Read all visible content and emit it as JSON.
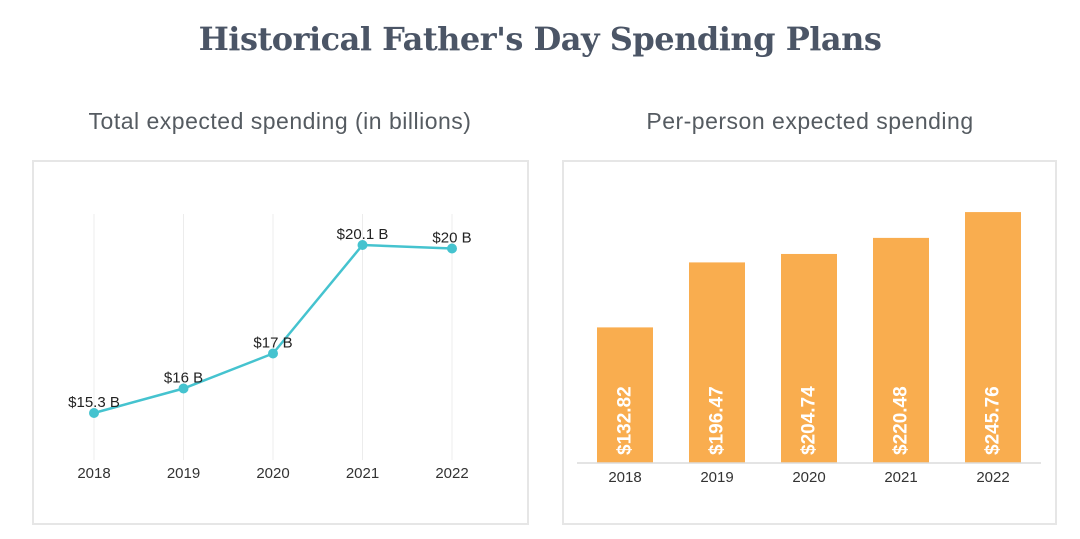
{
  "title": "Historical Father's Day Spending Plans",
  "chart_data": [
    {
      "type": "line",
      "title": "Total expected spending (in billions)",
      "categories": [
        "2018",
        "2019",
        "2020",
        "2021",
        "2022"
      ],
      "values": [
        15.3,
        16,
        17,
        20.1,
        20
      ],
      "data_labels": [
        "$15.3 B",
        "$16 B",
        "$17 B",
        "$20.1 B",
        "$20 B"
      ],
      "grid": "vertical",
      "color": "#45c3cf"
    },
    {
      "type": "bar",
      "title": "Per-person expected spending",
      "categories": [
        "2018",
        "2019",
        "2020",
        "2021",
        "2022"
      ],
      "values": [
        132.82,
        196.47,
        204.74,
        220.48,
        245.76
      ],
      "data_labels": [
        "$132.82",
        "$196.47",
        "$204.74",
        "$220.48",
        "$245.76"
      ],
      "color": "#f9ad4f"
    }
  ]
}
